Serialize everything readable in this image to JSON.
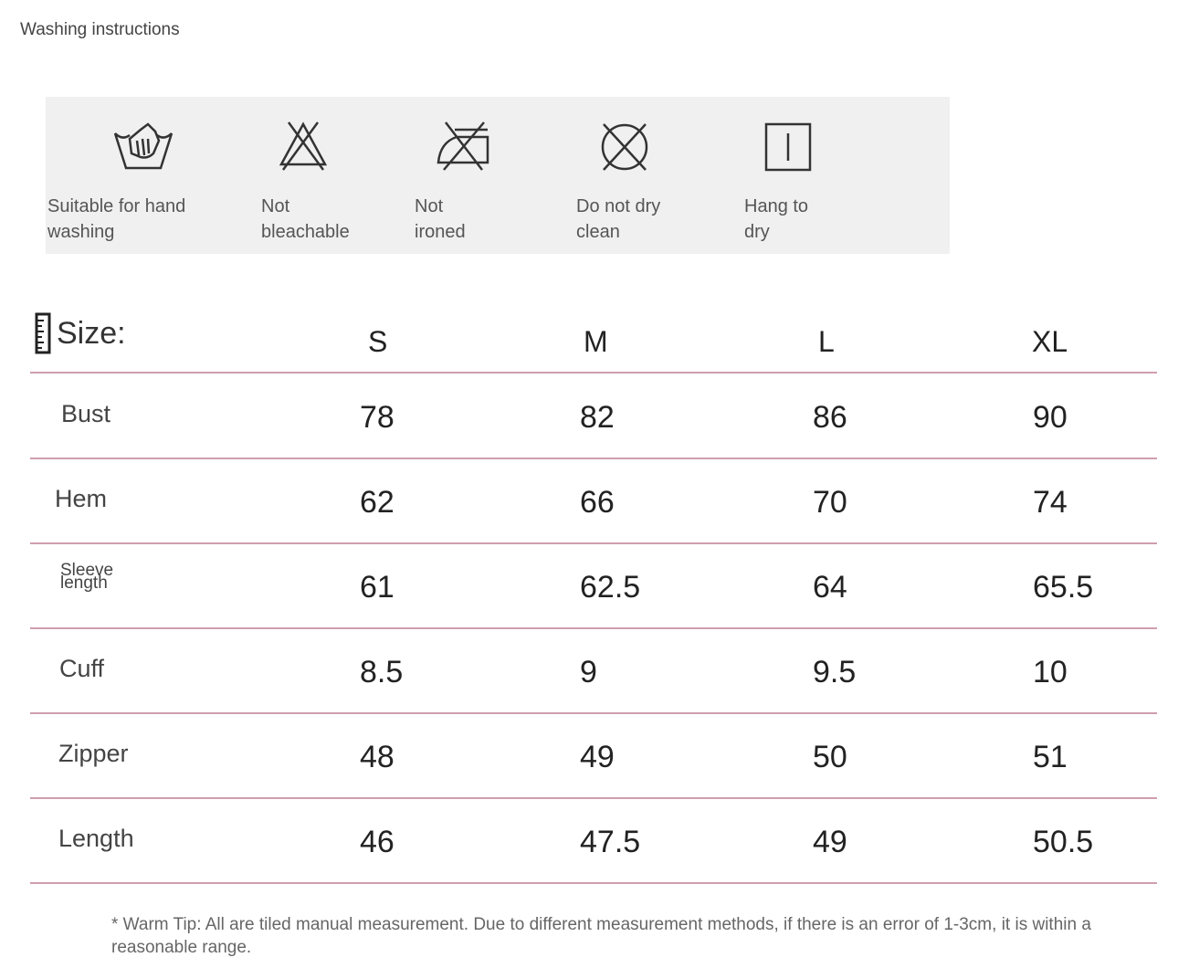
{
  "title": "Washing instructions",
  "care": [
    {
      "icon": "hand-wash-icon",
      "label": "Suitable for hand\nwashing"
    },
    {
      "icon": "no-bleach-icon",
      "label": "Not\nbleachable"
    },
    {
      "icon": "no-iron-icon",
      "label": "Not\nironed"
    },
    {
      "icon": "no-dry-clean-icon",
      "label": "Do not dry\nclean"
    },
    {
      "icon": "hang-dry-icon",
      "label": "Hang to\ndry"
    }
  ],
  "size_table": {
    "header_label": "Size:",
    "columns": [
      "S",
      "M",
      "L",
      "XL"
    ],
    "rows": [
      {
        "label": "Bust",
        "values": [
          "78",
          "82",
          "86",
          "90"
        ]
      },
      {
        "label": "Hem",
        "values": [
          "62",
          "66",
          "70",
          "74"
        ]
      },
      {
        "label": "Sleeve length",
        "values": [
          "61",
          "62.5",
          "64",
          "65.5"
        ]
      },
      {
        "label": "Cuff",
        "values": [
          "8.5",
          "9",
          "9.5",
          "10"
        ]
      },
      {
        "label": "Zipper",
        "values": [
          "48",
          "49",
          "50",
          "51"
        ]
      },
      {
        "label": "Length",
        "values": [
          "46",
          "47.5",
          "49",
          "50.5"
        ]
      }
    ],
    "line_color": "#cf9eae"
  },
  "tip": "* Warm Tip: All are tiled manual measurement. Due to different measurement methods, if there is an error of 1-3cm, it is within a reasonable range."
}
